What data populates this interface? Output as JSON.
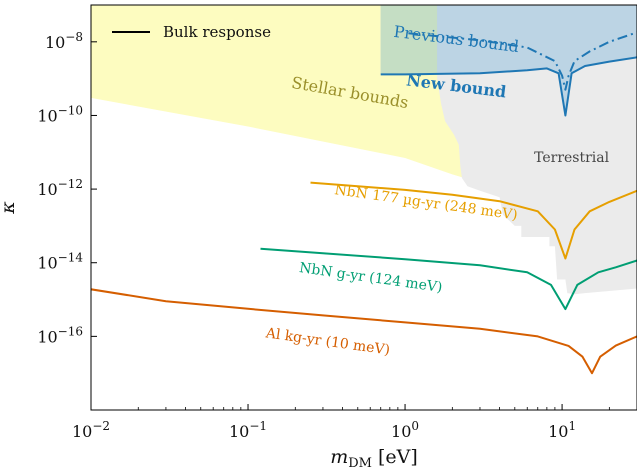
{
  "chart_data": {
    "type": "line",
    "xlabel": "m_DM [eV]",
    "ylabel": "κ",
    "x_scale": "log",
    "y_scale": "log",
    "xlim": [
      0.01,
      30
    ],
    "ylim": [
      1e-18,
      1e-07
    ],
    "x_ticks": [
      {
        "value": 0.01,
        "label": "10^-2"
      },
      {
        "value": 0.1,
        "label": "10^-1"
      },
      {
        "value": 1,
        "label": "10^0"
      },
      {
        "value": 10,
        "label": "10^1"
      }
    ],
    "y_ticks": [
      {
        "value": 1e-16,
        "label": "10^-16"
      },
      {
        "value": 1e-14,
        "label": "10^-14"
      },
      {
        "value": 1e-12,
        "label": "10^-12"
      },
      {
        "value": 1e-10,
        "label": "10^-10"
      },
      {
        "value": 1e-08,
        "label": "10^-8"
      }
    ],
    "legend": {
      "entries": [
        "Bulk response"
      ],
      "placement": "top-left"
    },
    "regions": [
      {
        "name": "Stellar bounds",
        "color": "#fdfcc0",
        "points": [
          [
            0.01,
            1e-07
          ],
          [
            0.01,
            3e-10
          ],
          [
            0.1,
            5e-11
          ],
          [
            1,
            7e-12
          ],
          [
            2,
            2.5e-12
          ],
          [
            3,
            1.5e-12
          ],
          [
            4,
            1.1e-12
          ],
          [
            4,
            1e-07
          ]
        ]
      },
      {
        "name": "Terrestrial",
        "color": "#ebebeb",
        "points": [
          [
            1.6,
            1e-07
          ],
          [
            1.6,
            1e-09
          ],
          [
            1.7,
            2e-10
          ],
          [
            1.8,
            7e-11
          ],
          [
            2.05,
            3e-11
          ],
          [
            2.2,
            1.6e-11
          ],
          [
            2.25,
            4e-12
          ],
          [
            2.3,
            2e-12
          ],
          [
            2.5,
            1.2e-12
          ],
          [
            3,
            9e-13
          ],
          [
            4,
            6e-13
          ],
          [
            4.2,
            2e-13
          ],
          [
            5,
            1e-13
          ],
          [
            5.5,
            1e-13
          ],
          [
            5.5,
            5e-14
          ],
          [
            8.3,
            5e-14
          ],
          [
            8.3,
            2.8e-14
          ],
          [
            9,
            2.8e-14
          ],
          [
            9.3,
            3.5e-15
          ],
          [
            10.5,
            3.5e-15
          ],
          [
            10.8,
            1.5e-15
          ],
          [
            12,
            1.4e-15
          ],
          [
            14,
            1.5e-15
          ],
          [
            30,
            2e-15
          ],
          [
            30,
            1e-07
          ]
        ]
      },
      {
        "name": "Previous bound",
        "color": "#bcd4e4",
        "points": [
          [
            0.7,
            1e-07
          ],
          [
            0.7,
            1.3e-09
          ],
          [
            1,
            1.3e-09
          ],
          [
            3,
            1.4e-09
          ],
          [
            6,
            1.7e-09
          ],
          [
            8,
            1.9e-09
          ],
          [
            9.5,
            1.4e-09
          ],
          [
            10.5,
            1e-10
          ],
          [
            11.5,
            1.4e-09
          ],
          [
            14,
            2.2e-09
          ],
          [
            20,
            2.9e-09
          ],
          [
            30,
            3.8e-09
          ],
          [
            30,
            1e-07
          ]
        ]
      }
    ],
    "series": [
      {
        "name": "Previous bound",
        "color": "#1f77b4",
        "style": "dashdot",
        "x": [
          1.05,
          3,
          6,
          9,
          10,
          10.5,
          11,
          12,
          15,
          20,
          30
        ],
        "y": [
          1.7e-08,
          1.1e-08,
          7e-09,
          3e-09,
          1.2e-09,
          5e-10,
          1.2e-09,
          3e-09,
          5.5e-09,
          1e-08,
          1.8e-08
        ]
      },
      {
        "name": "New bound",
        "color": "#1f77b4",
        "style": "solid",
        "x": [
          0.7,
          1,
          3,
          6,
          8,
          9.5,
          10.5,
          11.5,
          14,
          20,
          30
        ],
        "y": [
          1.3e-09,
          1.3e-09,
          1.4e-09,
          1.7e-09,
          1.9e-09,
          1.4e-09,
          1e-10,
          1.4e-09,
          2.2e-09,
          2.9e-09,
          3.8e-09
        ]
      },
      {
        "name": "NbN 177 µg-yr (248 meV)",
        "color": "#e69f00",
        "style": "solid",
        "x": [
          0.25,
          0.5,
          1,
          2,
          4,
          7,
          9,
          10.5,
          12,
          15,
          20,
          30
        ],
        "y": [
          1.5e-12,
          1.2e-12,
          9.5e-13,
          7e-13,
          4.7e-13,
          2.5e-13,
          8e-14,
          1.3e-14,
          8e-14,
          2.5e-13,
          4.5e-13,
          9e-13
        ]
      },
      {
        "name": "NbN g-yr (124 meV)",
        "color": "#009e73",
        "style": "solid",
        "x": [
          0.12,
          0.3,
          1,
          3,
          6,
          8.5,
          10.5,
          12.5,
          17,
          22,
          30
        ],
        "y": [
          2.4e-14,
          1.8e-14,
          1.25e-14,
          8.5e-15,
          5.5e-15,
          2.5e-15,
          5.5e-16,
          2.5e-15,
          5.5e-15,
          7.5e-15,
          1.15e-14
        ]
      },
      {
        "name": "Al kg-yr (10 meV)",
        "color": "#d55e00",
        "style": "solid",
        "x": [
          0.01,
          0.03,
          0.1,
          0.3,
          1,
          3,
          7,
          11,
          13.5,
          15.5,
          17.5,
          22,
          30
        ],
        "y": [
          1.9e-15,
          9e-16,
          5.6e-16,
          3.7e-16,
          2.4e-16,
          1.6e-16,
          1e-16,
          5.5e-17,
          2.8e-17,
          1e-17,
          2.8e-17,
          5.6e-17,
          1e-16
        ]
      }
    ],
    "annotations": [
      {
        "text": "Stellar bounds",
        "x": 0.44,
        "y": 3e-10,
        "color": "#9a8f2a",
        "rotate": 10,
        "size": 16,
        "weight": "normal"
      },
      {
        "text": "Previous bound",
        "x": 2.1,
        "y": 8.5e-09,
        "color": "#1f77b4",
        "rotate": 7,
        "size": 16,
        "weight": "normal"
      },
      {
        "text": "New bound",
        "x": 2.1,
        "y": 4.5e-10,
        "color": "#1f77b4",
        "rotate": 7,
        "size": 16,
        "weight": "bold"
      },
      {
        "text": "Terrestrial",
        "x": 11.5,
        "y": 5.5e-12,
        "color": "#444444",
        "rotate": 0,
        "size": 14,
        "weight": "normal"
      },
      {
        "text": "NbN 177 µg-yr (248 meV)",
        "x": 1.35,
        "y": 3.3e-13,
        "color": "#e69f00",
        "rotate": 8,
        "size": 14,
        "weight": "normal"
      },
      {
        "text": "NbN g-yr (124 meV)",
        "x": 0.6,
        "y": 3e-15,
        "color": "#009e73",
        "rotate": 8,
        "size": 14,
        "weight": "normal"
      },
      {
        "text": "Al kg-yr (10 meV)",
        "x": 0.32,
        "y": 5.5e-17,
        "color": "#d55e00",
        "rotate": 8,
        "size": 14,
        "weight": "normal"
      }
    ]
  }
}
